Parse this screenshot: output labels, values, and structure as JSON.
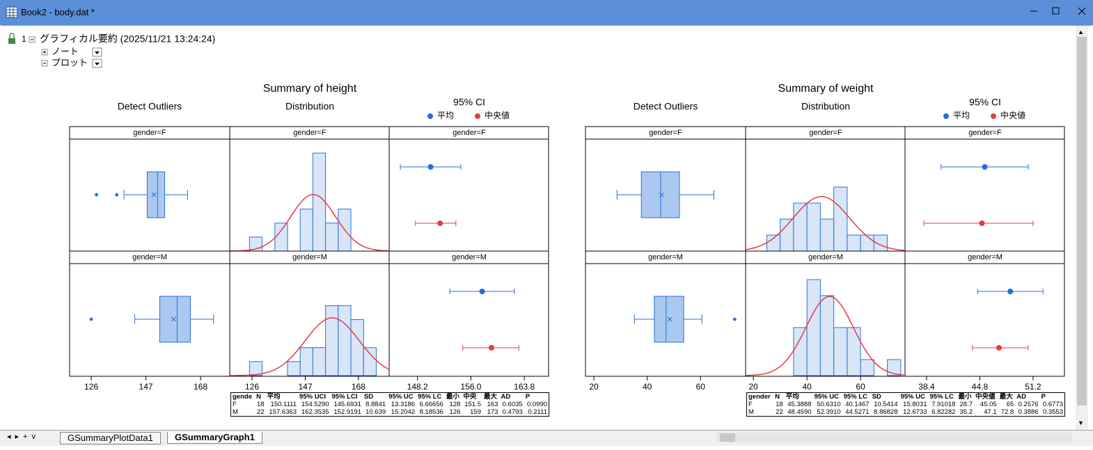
{
  "window": {
    "title": "Book2 - body.dat *"
  },
  "tree": {
    "index": "1",
    "title": "グラフィカル要約 (2025/11/21 13:24:24)",
    "items": [
      "ノート",
      "プロット"
    ]
  },
  "tabs": [
    "GSummaryPlotData1",
    "GSummaryGraph1"
  ],
  "graphs": [
    {
      "title": "Summary of height",
      "columns": [
        "Detect Outliers",
        "Distribution"
      ],
      "legend": {
        "title": "95% CI",
        "items": [
          {
            "name": "平均",
            "color": "#1f6fe0"
          },
          {
            "name": "中央値",
            "color": "#e8393f"
          }
        ]
      },
      "groups": [
        "gender=F",
        "gender=M"
      ],
      "box": {
        "xlim": [
          117.7,
          179.2
        ],
        "xticks": [
          126,
          147,
          168
        ],
        "fill": "#aac8f0",
        "stroke": "#2a6fd6",
        "series": [
          {
            "whisker_low": 138.6,
            "q1": 147.5,
            "median": 151.5,
            "q3": 154.2,
            "whisker_high": 163,
            "mean": 150.1111,
            "outliers": [
              128,
              135.8
            ]
          },
          {
            "whisker_low": 142.7,
            "q1": 152.3,
            "median": 159,
            "q3": 164.1,
            "whisker_high": 173,
            "mean": 157.6363,
            "outliers": [
              126
            ]
          }
        ]
      },
      "hist": {
        "xlim": [
          117.2,
          180.1
        ],
        "xticks": [
          126,
          147,
          168
        ],
        "ylim": [
          0,
          8
        ],
        "fill": "#d8e6f8",
        "stroke": "#2a6fd6",
        "curve_color": "#e8393f",
        "series": [
          {
            "bins": [
              125,
              130,
              135,
              140,
              145,
              150,
              155,
              160,
              165
            ],
            "counts": [
              1,
              0,
              2,
              0,
              3,
              7,
              2,
              3
            ],
            "mean": 150.1111,
            "sd": 8.8841,
            "n": 18
          },
          {
            "bins": [
              125,
              130,
              135,
              140,
              145,
              150,
              155,
              160,
              165,
              170,
              175
            ],
            "counts": [
              1,
              0,
              0,
              1,
              2,
              2,
              5,
              5,
              4,
              2
            ],
            "mean": 157.6363,
            "sd": 10.639,
            "n": 22
          }
        ]
      },
      "ci": {
        "xlim": [
          144.06,
          167.34
        ],
        "xticks": [
          148.2,
          {
            "value": 156,
            "label": "156.0"
          },
          163.8
        ],
        "series": [
          {
            "mean": 150.1111,
            "mean_low": 145.6931,
            "mean_high": 154.529,
            "median": 151.5,
            "median_low": 147.9,
            "median_high": 153.8
          },
          {
            "mean": 157.6363,
            "mean_low": 152.9191,
            "mean_high": 162.3535,
            "median": 159,
            "median_low": 154.8,
            "median_high": 163.0
          }
        ]
      },
      "table": {
        "header": [
          "gende",
          "N",
          "平均",
          "95% UCI",
          "95% LCI",
          "SD",
          "95% UC",
          "95% LC",
          "最小",
          "中央",
          "最大",
          "AD",
          "P"
        ],
        "rows": [
          [
            "F",
            "18",
            "150.1111",
            "154.5290",
            "145.6931",
            "8.8841",
            "13.3186",
            "6.66656",
            "128",
            "151.5",
            "163",
            "0.6035",
            "0.0990"
          ],
          [
            "M",
            "22",
            "157.6363",
            "162.3535",
            "152.9191",
            "10.639",
            "15.2042",
            "8.18536",
            "126",
            "159",
            "173",
            "0.4793",
            "0.2111"
          ]
        ]
      }
    },
    {
      "title": "Summary of weight",
      "columns": [
        "Detect Outliers",
        "Distribution"
      ],
      "legend": {
        "title": "95% CI",
        "items": [
          {
            "name": "平均",
            "color": "#1f6fe0"
          },
          {
            "name": "中央値",
            "color": "#e8393f"
          }
        ]
      },
      "groups": [
        "gender=F",
        "gender=M"
      ],
      "box": {
        "xlim": [
          16.87,
          76.9
        ],
        "xticks": [
          20,
          40,
          60
        ],
        "fill": "#aac8f0",
        "stroke": "#2a6fd6",
        "series": [
          {
            "whisker_low": 28.7,
            "q1": 37.8,
            "median": 45.05,
            "q3": 52.1,
            "whisker_high": 65,
            "mean": 45.3888,
            "outliers": []
          },
          {
            "whisker_low": 35.2,
            "q1": 42.7,
            "median": 47.1,
            "q3": 53.7,
            "whisker_high": 60.5,
            "mean": 48.459,
            "outliers": [
              72.8
            ]
          }
        ]
      },
      "hist": {
        "xlim": [
          17.1,
          76.6
        ],
        "xticks": [
          20,
          40,
          60
        ],
        "ylim": [
          0,
          7
        ],
        "fill": "#d8e6f8",
        "stroke": "#2a6fd6",
        "curve_color": "#e8393f",
        "series": [
          {
            "bins": [
              25,
              30,
              35,
              40,
              45,
              50,
              55,
              60,
              65,
              70
            ],
            "counts": [
              1,
              2,
              3,
              3,
              2,
              4,
              1,
              1,
              1
            ],
            "mean": 45.3888,
            "sd": 10.5414,
            "n": 18
          },
          {
            "bins": [
              35,
              40,
              45,
              50,
              55,
              60,
              65,
              70,
              75
            ],
            "counts": [
              3,
              6,
              5,
              3,
              3,
              1,
              0,
              1
            ],
            "mean": 48.459,
            "sd": 8.86828,
            "n": 22
          }
        ]
      },
      "ci": {
        "xlim": [
          35.81,
          54.97
        ],
        "xticks": [
          38.4,
          44.8,
          51.2
        ],
        "series": [
          {
            "mean": 45.3888,
            "mean_low": 40.1467,
            "mean_high": 50.631,
            "median": 45.05,
            "median_low": 38.07,
            "median_high": 51.2
          },
          {
            "mean": 48.459,
            "mean_low": 44.5271,
            "mean_high": 52.391,
            "median": 47.1,
            "median_low": 43.9,
            "median_high": 50.6
          }
        ]
      },
      "table": {
        "header": [
          "gender",
          "N",
          "平均",
          "95% UC",
          "95% LC",
          "SD",
          "95% UC",
          "95% LC",
          "最小",
          "中央値",
          "最大",
          "AD",
          "P"
        ],
        "rows": [
          [
            "F",
            "18",
            "45.3888",
            "50.6310",
            "40.1467",
            "10.5414",
            "15.8031",
            "7.91018",
            "28.7",
            "45.05",
            "65",
            "0.2576",
            "0.6773"
          ],
          [
            "M",
            "22",
            "48.4590",
            "52.3910",
            "44.5271",
            "8.86828",
            "12.6733",
            "6.82282",
            "35.2",
            "47.1",
            "72.8",
            "0.3886",
            "0.3553"
          ]
        ]
      }
    }
  ]
}
